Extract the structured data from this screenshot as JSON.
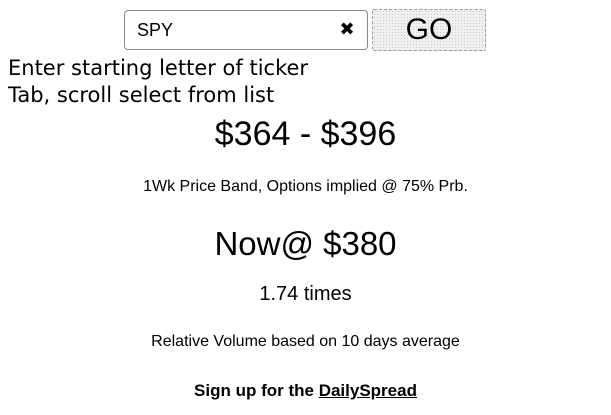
{
  "ticker": {
    "value": "SPY",
    "placeholder": "",
    "clear_icon": "close-icon",
    "clear_glyph": "✖"
  },
  "go_button": {
    "label": "GO"
  },
  "instructions": {
    "line1": "Enter starting letter of ticker",
    "line2": "Tab, scroll select from list"
  },
  "price_band": {
    "range": "$364 - $396",
    "caption": "1Wk Price Band, Options implied @ 75% Prb."
  },
  "current": {
    "now": "Now@ $380"
  },
  "relative_volume": {
    "value": "1.74 times",
    "caption": "Relative Volume based on 10 days average"
  },
  "signup": {
    "prefix": "Sign up for the ",
    "link": "DailySpread"
  }
}
